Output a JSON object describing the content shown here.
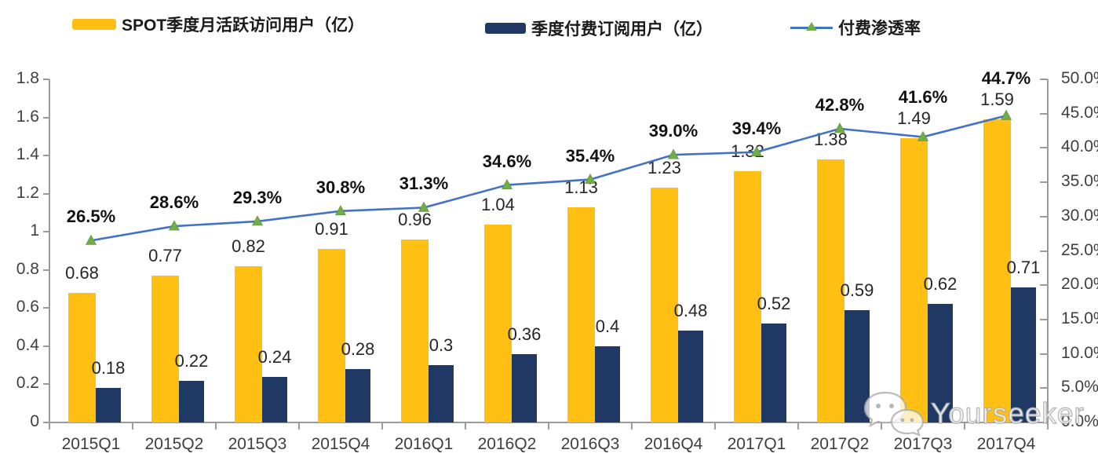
{
  "legend": {
    "items": [
      {
        "label": "SPOT季度月活跃访问用户（亿）",
        "type": "bar",
        "color": "#FFC013"
      },
      {
        "label": "季度付费订阅用户（亿）",
        "type": "bar",
        "color": "#1F3864"
      },
      {
        "label": "付费渗透率",
        "type": "line",
        "color": "#4472C4",
        "marker_color": "#70AD47"
      }
    ]
  },
  "watermark": {
    "text": "Yourseeker",
    "icon": "wechat-icon"
  },
  "chart_data": {
    "type": "bar+line",
    "title": "",
    "categories": [
      "2015Q1",
      "2015Q2",
      "2015Q3",
      "2015Q4",
      "2016Q1",
      "2016Q2",
      "2016Q3",
      "2016Q4",
      "2017Q1",
      "2017Q2",
      "2017Q3",
      "2017Q4"
    ],
    "series": [
      {
        "name": "SPOT季度月活跃访问用户（亿）",
        "type": "bar",
        "axis": "left",
        "color": "#FFC013",
        "values": [
          0.68,
          0.77,
          0.82,
          0.91,
          0.96,
          1.04,
          1.13,
          1.23,
          1.32,
          1.38,
          1.49,
          1.59
        ],
        "labels": [
          "0.68",
          "0.77",
          "0.82",
          "0.91",
          "0.96",
          "1.04",
          "1.13",
          "1.23",
          "1.32",
          "1.38",
          "1.49",
          "1.59"
        ]
      },
      {
        "name": "季度付费订阅用户（亿）",
        "type": "bar",
        "axis": "left",
        "color": "#1F3864",
        "values": [
          0.18,
          0.22,
          0.24,
          0.28,
          0.3,
          0.36,
          0.4,
          0.48,
          0.52,
          0.59,
          0.62,
          0.71
        ],
        "labels": [
          "0.18",
          "0.22",
          "0.24",
          "0.28",
          "0.3",
          "0.36",
          "0.4",
          "0.48",
          "0.52",
          "0.59",
          "0.62",
          "0.71"
        ]
      },
      {
        "name": "付费渗透率",
        "type": "line",
        "axis": "right",
        "color": "#4472C4",
        "marker": "triangle",
        "marker_color": "#70AD47",
        "values": [
          26.5,
          28.6,
          29.3,
          30.8,
          31.3,
          34.6,
          35.4,
          39.0,
          39.4,
          42.8,
          41.6,
          44.7
        ],
        "labels": [
          "26.5%",
          "28.6%",
          "29.3%",
          "30.8%",
          "31.3%",
          "34.6%",
          "35.4%",
          "39.0%",
          "39.4%",
          "42.8%",
          "41.6%",
          "44.7%"
        ]
      }
    ],
    "left_axis": {
      "min": 0,
      "max": 1.8,
      "step": 0.2,
      "ticks": [
        "0",
        "0.2",
        "0.4",
        "0.6",
        "0.8",
        "1",
        "1.2",
        "1.4",
        "1.6",
        "1.8"
      ]
    },
    "right_axis": {
      "min": 0,
      "max": 50,
      "step": 5,
      "ticks": [
        "0.0%",
        "5.0%",
        "10.0%",
        "15.0%",
        "20.0%",
        "25.0%",
        "30.0%",
        "35.0%",
        "40.0%",
        "45.0%",
        "50.0%"
      ]
    },
    "grid": false,
    "legend_position": "top",
    "colors": {
      "axis": "#9a9a9a"
    }
  }
}
